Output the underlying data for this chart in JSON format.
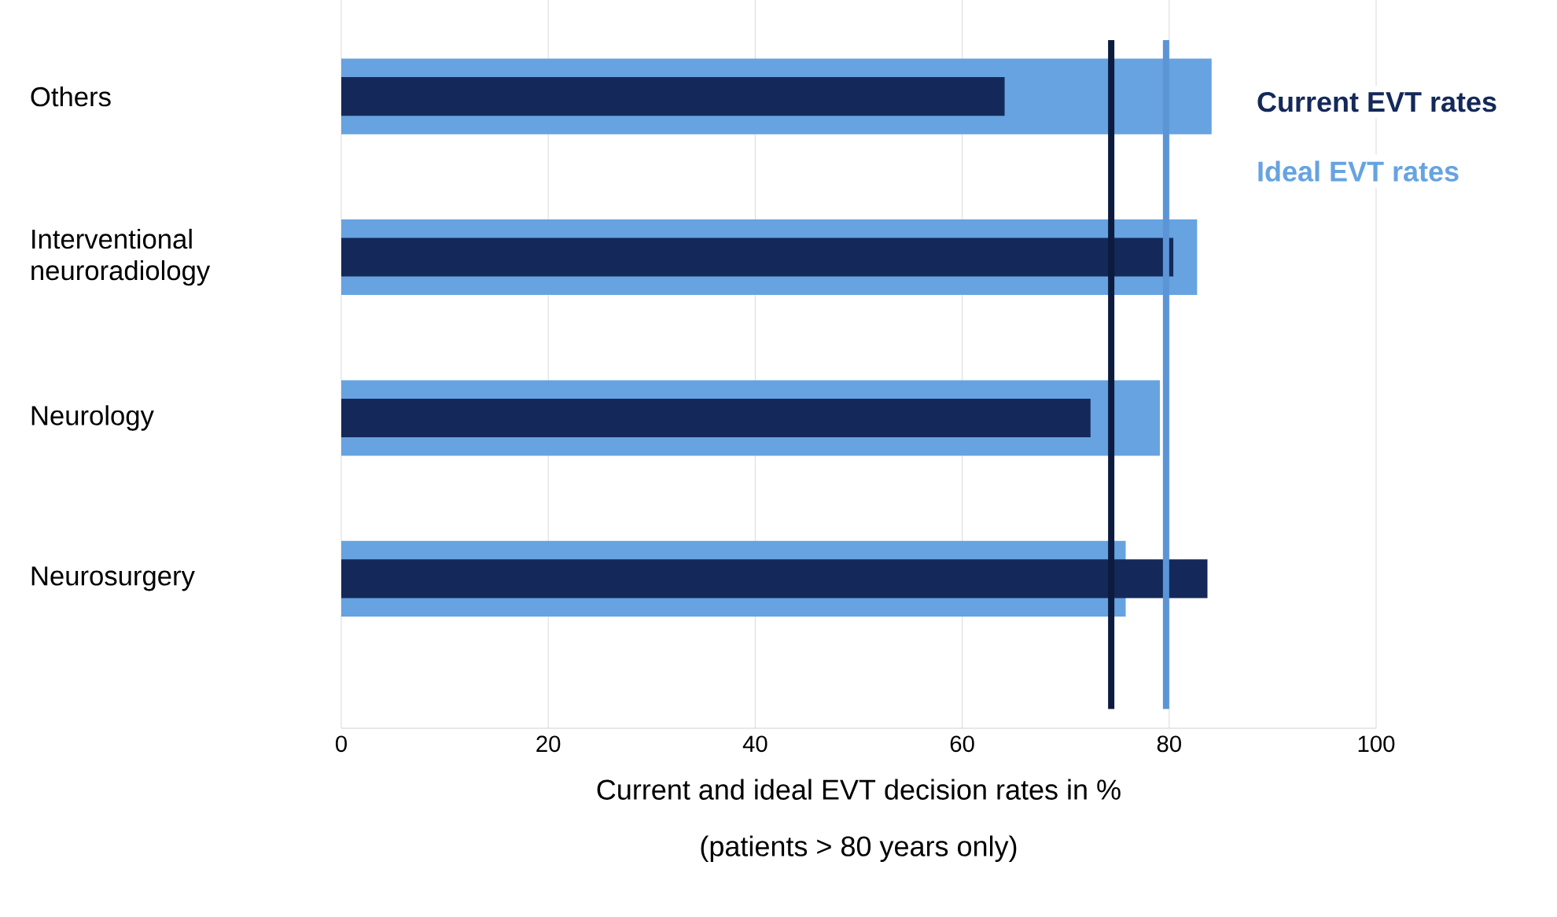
{
  "chart_data": {
    "type": "bar",
    "orientation": "horizontal",
    "categories": [
      "Others",
      "Interventional neuroradiology",
      "Neurology",
      "Neurosurgery"
    ],
    "series": [
      {
        "name": "Ideal EVT rates",
        "color": "#66a3e0",
        "values": [
          84.1,
          82.7,
          79.1,
          75.8
        ]
      },
      {
        "name": "Current EVT rates",
        "color": "#14295a",
        "values": [
          64.1,
          80.4,
          72.4,
          83.7
        ]
      }
    ],
    "xlim": [
      0,
      100
    ],
    "xticks": [
      0,
      20,
      40,
      60,
      80,
      100
    ],
    "xlabel": "Current and ideal EVT decision rates in %",
    "annotations": [
      "(patients > 80 years only)"
    ],
    "ref_lines": [
      {
        "axis": "x",
        "value": 74.4,
        "color": "#0d1b3e"
      },
      {
        "axis": "x",
        "value": 79.7,
        "color": "#5b95d6"
      }
    ],
    "grid": "x",
    "legend": "top right"
  }
}
